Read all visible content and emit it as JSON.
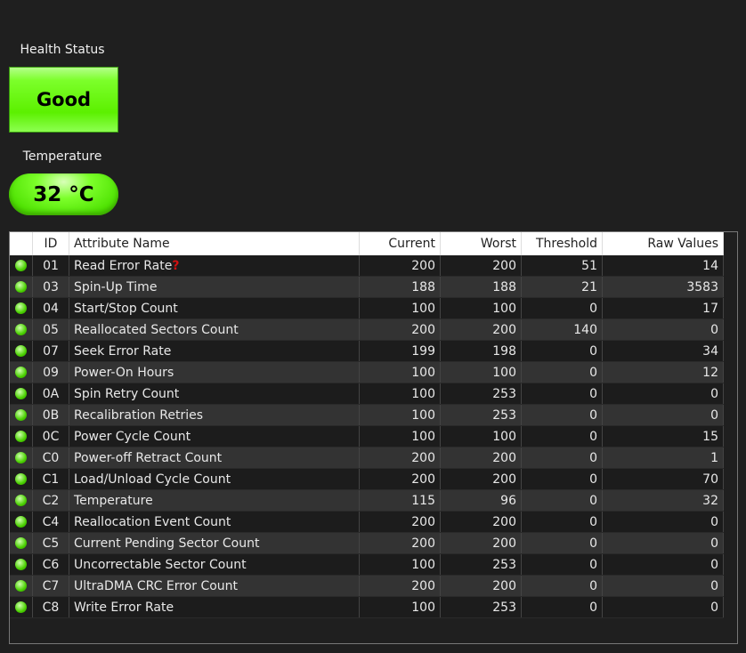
{
  "health": {
    "label": "Health Status",
    "value": "Good",
    "color": "#5cf000"
  },
  "temperature": {
    "label": "Temperature",
    "value": "32 °C"
  },
  "table": {
    "columns": [
      "",
      "ID",
      "Attribute Name",
      "Current",
      "Worst",
      "Threshold",
      "Raw Values"
    ],
    "rows": [
      [
        "01",
        "Read Error Rate",
        "200",
        "200",
        "51",
        "14"
      ],
      [
        "03",
        "Spin-Up Time",
        "188",
        "188",
        "21",
        "3583"
      ],
      [
        "04",
        "Start/Stop Count",
        "100",
        "100",
        "0",
        "17"
      ],
      [
        "05",
        "Reallocated Sectors Count",
        "200",
        "200",
        "140",
        "0"
      ],
      [
        "07",
        "Seek Error Rate",
        "199",
        "198",
        "0",
        "34"
      ],
      [
        "09",
        "Power-On Hours",
        "100",
        "100",
        "0",
        "12"
      ],
      [
        "0A",
        "Spin Retry Count",
        "100",
        "253",
        "0",
        "0"
      ],
      [
        "0B",
        "Recalibration Retries",
        "100",
        "253",
        "0",
        "0"
      ],
      [
        "0C",
        "Power Cycle Count",
        "100",
        "100",
        "0",
        "15"
      ],
      [
        "C0",
        "Power-off Retract Count",
        "200",
        "200",
        "0",
        "1"
      ],
      [
        "C1",
        "Load/Unload Cycle Count",
        "200",
        "200",
        "0",
        "70"
      ],
      [
        "C2",
        "Temperature",
        "115",
        "96",
        "0",
        "32"
      ],
      [
        "C4",
        "Reallocation Event Count",
        "200",
        "200",
        "0",
        "0"
      ],
      [
        "C5",
        "Current Pending Sector Count",
        "200",
        "200",
        "0",
        "0"
      ],
      [
        "C6",
        "Uncorrectable Sector Count",
        "100",
        "253",
        "0",
        "0"
      ],
      [
        "C7",
        "UltraDMA CRC Error Count",
        "200",
        "200",
        "0",
        "0"
      ],
      [
        "C8",
        "Write Error Rate",
        "100",
        "253",
        "0",
        "0"
      ]
    ],
    "first_row_marker": "?",
    "status_icon": "green-status-dot"
  }
}
